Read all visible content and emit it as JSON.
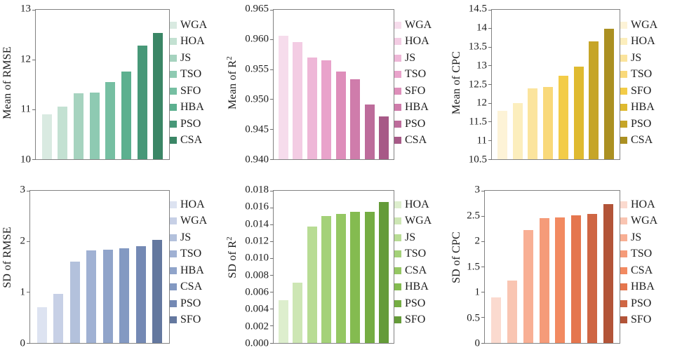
{
  "figure": {
    "background": "#ffffff",
    "plot_border_color": "#828282",
    "text_color": "#1c1c1c",
    "layout": "2 rows x 3 columns of bar charts, legend right of each plot"
  },
  "chart_data": [
    {
      "type": "bar",
      "title": "",
      "ylabel": "Mean of RMSE",
      "ylabel_sup": "",
      "ylim": [
        10,
        13
      ],
      "yticks": [
        "10",
        "11",
        "12",
        "13"
      ],
      "grid": false,
      "legend_position": "right",
      "categories": [
        "WGA",
        "HOA",
        "JS",
        "TSO",
        "SFO",
        "HBA",
        "PSO",
        "CSA"
      ],
      "values": [
        10.9,
        11.06,
        11.32,
        11.34,
        11.55,
        11.76,
        12.28,
        12.53
      ],
      "colors": [
        "#d9eae1",
        "#c3e1d2",
        "#a6d3bf",
        "#8ecab2",
        "#76bfa2",
        "#5cb08f",
        "#479878",
        "#3b8666"
      ]
    },
    {
      "type": "bar",
      "title": "",
      "ylabel": "Mean of R",
      "ylabel_sup": "2",
      "ylim": [
        0.94,
        0.965
      ],
      "yticks": [
        "0.940",
        "0.945",
        "0.950",
        "0.955",
        "0.960",
        "0.965"
      ],
      "grid": false,
      "legend_position": "right",
      "categories": [
        "WGA",
        "HOA",
        "JS",
        "TSO",
        "SFO",
        "HBA",
        "PSO",
        "CSA"
      ],
      "values": [
        0.9607,
        0.9596,
        0.957,
        0.9566,
        0.9547,
        0.9534,
        0.9491,
        0.9472
      ],
      "colors": [
        "#f6dcec",
        "#f3cce3",
        "#eeb7d7",
        "#e9a3cb",
        "#de8eba",
        "#cf7cab",
        "#bd6c9b",
        "#a75987"
      ]
    },
    {
      "type": "bar",
      "title": "",
      "ylabel": "Mean of CPC",
      "ylabel_sup": "",
      "ylim": [
        10.5,
        14.5
      ],
      "yticks": [
        "10.5",
        "11",
        "11.5",
        "12",
        "12.5",
        "13",
        "13.5",
        "14",
        "14.5"
      ],
      "grid": false,
      "legend_position": "right",
      "categories": [
        "WGA",
        "HOA",
        "JS",
        "TSO",
        "SFO",
        "HBA",
        "PSO",
        "CSA"
      ],
      "values": [
        11.8,
        12.0,
        12.39,
        12.43,
        12.73,
        12.98,
        13.66,
        14.0
      ],
      "colors": [
        "#fdf3d7",
        "#fceebd",
        "#fbe49d",
        "#f9d97a",
        "#f3cc48",
        "#dfba30",
        "#c6a528",
        "#ab9022"
      ]
    },
    {
      "type": "bar",
      "title": "",
      "ylabel": "SD of RMSE",
      "ylabel_sup": "",
      "ylim": [
        0,
        3
      ],
      "yticks": [
        "0",
        "1",
        "2",
        "3"
      ],
      "grid": false,
      "legend_position": "right",
      "categories": [
        "HOA",
        "WGA",
        "JS",
        "TSO",
        "HBA",
        "CSA",
        "PSO",
        "SFO"
      ],
      "values": [
        0.7,
        0.97,
        1.61,
        1.82,
        1.84,
        1.86,
        1.91,
        2.03
      ],
      "colors": [
        "#dde3f1",
        "#c7d0e6",
        "#b3c1dc",
        "#a0b1d3",
        "#90a4ca",
        "#8399c2",
        "#7489b4",
        "#64789f"
      ]
    },
    {
      "type": "bar",
      "title": "",
      "ylabel": "SD of R",
      "ylabel_sup": "2",
      "ylim": [
        0,
        0.018
      ],
      "yticks": [
        "0.000",
        "0.002",
        "0.004",
        "0.006",
        "0.008",
        "0.010",
        "0.012",
        "0.014",
        "0.016",
        "0.018"
      ],
      "grid": false,
      "legend_position": "right",
      "categories": [
        "HOA",
        "WGA",
        "JS",
        "TSO",
        "CSA",
        "HBA",
        "PSO",
        "SFO"
      ],
      "values": [
        0.0051,
        0.0071,
        0.0138,
        0.015,
        0.0153,
        0.0155,
        0.0155,
        0.0167
      ],
      "colors": [
        "#ddeecd",
        "#cde6b4",
        "#b8dc94",
        "#a4d179",
        "#95c763",
        "#84bb50",
        "#75ad43",
        "#649b38"
      ]
    },
    {
      "type": "bar",
      "title": "",
      "ylabel": "SD of CPC",
      "ylabel_sup": "",
      "ylim": [
        0,
        3
      ],
      "yticks": [
        "0",
        "0.5",
        "1",
        "1.5",
        "2",
        "2.5",
        "3"
      ],
      "grid": false,
      "legend_position": "right",
      "categories": [
        "HOA",
        "WGA",
        "JS",
        "TSO",
        "CSA",
        "HBA",
        "PSO",
        "SFO"
      ],
      "values": [
        0.9,
        1.23,
        2.23,
        2.46,
        2.48,
        2.52,
        2.55,
        2.74
      ],
      "colors": [
        "#fbdacf",
        "#f9c5b2",
        "#f8af94",
        "#f59b79",
        "#f28a61",
        "#e5764e",
        "#cf6644",
        "#b25438"
      ]
    }
  ]
}
